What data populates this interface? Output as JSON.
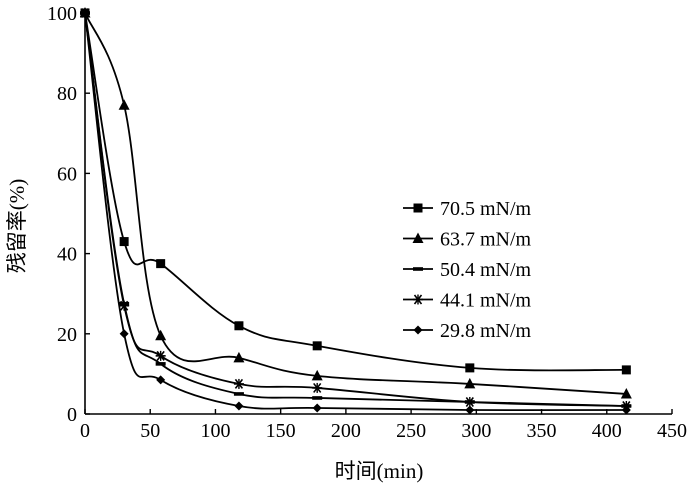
{
  "chart_data": {
    "type": "line",
    "title": "",
    "xlabel": "时间(min)",
    "ylabel": "残留率(%)",
    "xlim": [
      0,
      450
    ],
    "ylim": [
      0,
      100
    ],
    "x_ticks": [
      "0",
      "50",
      "100",
      "150",
      "200",
      "250",
      "300",
      "350",
      "400",
      "450"
    ],
    "y_ticks": [
      "0",
      "20",
      "40",
      "60",
      "80",
      "100"
    ],
    "grid": false,
    "legend_position": "right-middle",
    "series": [
      {
        "name": "70.5 mN/m",
        "marker": "square",
        "points": [
          [
            0,
            100
          ],
          [
            30,
            43
          ],
          [
            58,
            37.5
          ],
          [
            118,
            22
          ],
          [
            178,
            17
          ],
          [
            295,
            11.5
          ],
          [
            415,
            11
          ]
        ]
      },
      {
        "name": "63.7 mN/m",
        "marker": "triangle",
        "points": [
          [
            0,
            100
          ],
          [
            30,
            77
          ],
          [
            58,
            19.5
          ],
          [
            118,
            14
          ],
          [
            178,
            9.5
          ],
          [
            295,
            7.5
          ],
          [
            415,
            5
          ]
        ]
      },
      {
        "name": "50.4 mN/m",
        "marker": "dash",
        "points": [
          [
            0,
            100
          ],
          [
            30,
            27.5
          ],
          [
            58,
            12.5
          ],
          [
            118,
            5
          ],
          [
            178,
            4
          ],
          [
            295,
            3
          ],
          [
            415,
            2
          ]
        ]
      },
      {
        "name": "44.1 mN/m",
        "marker": "star",
        "points": [
          [
            0,
            100
          ],
          [
            30,
            27
          ],
          [
            58,
            14.5
          ],
          [
            118,
            7.5
          ],
          [
            178,
            6.5
          ],
          [
            295,
            3
          ],
          [
            415,
            2
          ]
        ]
      },
      {
        "name": "29.8 mN/m",
        "marker": "diamond",
        "points": [
          [
            0,
            100
          ],
          [
            30,
            20
          ],
          [
            58,
            8.5
          ],
          [
            118,
            2
          ],
          [
            178,
            1.5
          ],
          [
            295,
            1
          ],
          [
            415,
            1
          ]
        ]
      }
    ]
  }
}
